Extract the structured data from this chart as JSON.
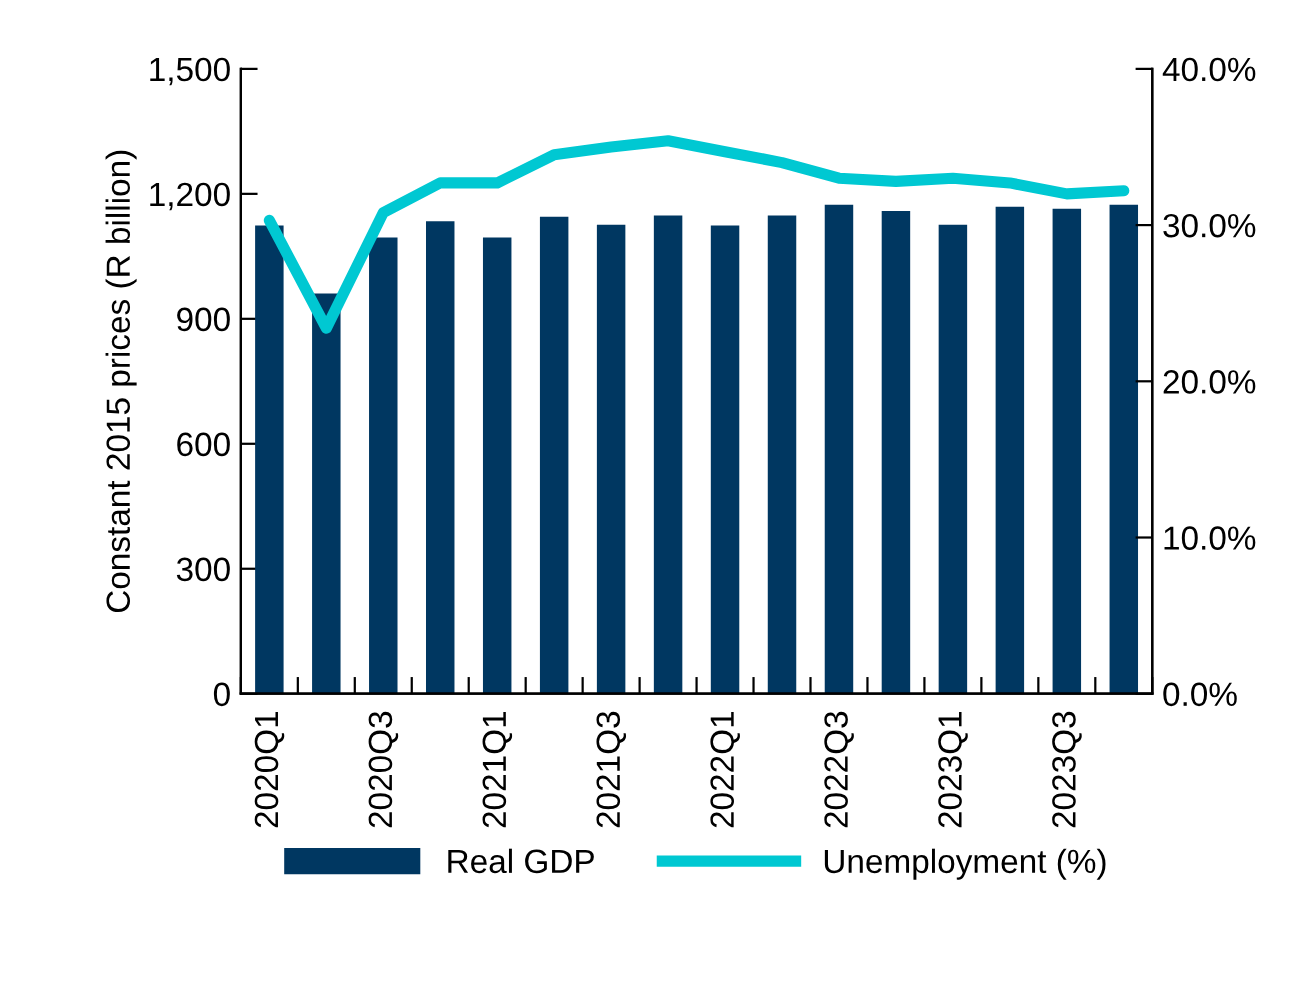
{
  "chart_data": {
    "type": "bar",
    "categories": [
      "2020Q1",
      null,
      "2020Q3",
      null,
      "2021Q1",
      null,
      "2021Q3",
      null,
      "2022Q1",
      null,
      "2022Q3",
      null,
      "2023Q1",
      null,
      "2023Q3",
      null
    ],
    "ylabel": "Constant 2015 prices (R billion)",
    "series": [
      {
        "name": "Real GDP",
        "color": "#003761",
        "values": [
          1124,
          961,
          1095,
          1134,
          1095,
          1145,
          1126,
          1148,
          1124,
          1148,
          1174,
          1159,
          1126,
          1169,
          1164,
          1174
        ]
      },
      {
        "name": "Unemployment (%)",
        "type": "line",
        "axis": "y2",
        "color": "#00c8d2",
        "values": [
          30.3,
          23.4,
          30.8,
          32.7,
          32.7,
          34.5,
          35.0,
          35.4,
          34.7,
          34.0,
          33.0,
          32.8,
          33.0,
          32.7,
          32.0,
          32.2
        ]
      }
    ],
    "ylim": [
      0,
      1500
    ],
    "yticks": [
      0,
      300,
      600,
      900,
      {
        "value": 1200,
        "label": "1,200"
      },
      {
        "value": 1500,
        "label": "1,500"
      }
    ],
    "y2lim": [
      0,
      40
    ],
    "y2ticks": [
      {
        "value": 0,
        "label": "0.0%"
      },
      {
        "value": 10,
        "label": "10.0%"
      },
      {
        "value": 20,
        "label": "20.0%"
      },
      {
        "value": 30,
        "label": "30.0%"
      },
      {
        "value": 40,
        "label": "40.0%"
      }
    ],
    "grid": false,
    "legend": "bottom",
    "marker": "none",
    "line_style": "solid"
  }
}
